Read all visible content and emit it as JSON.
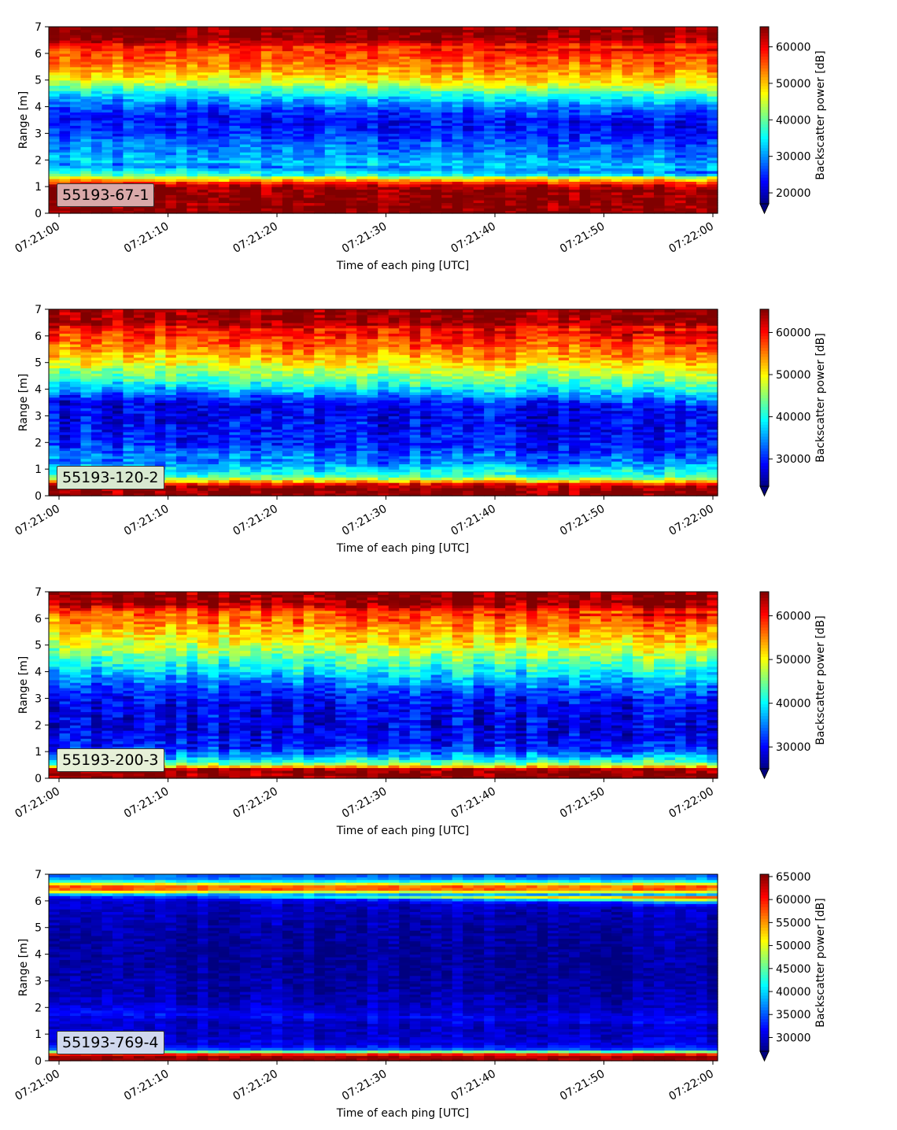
{
  "chart_data": [
    {
      "type": "heatmap",
      "label": "55193-67-1",
      "xlabel": "Time of each ping [UTC]",
      "ylabel": "Range [m]",
      "colorbar_label": "Backscatter power [dB]",
      "colormap": "jet",
      "x_ticks": [
        "07:21:00",
        "07:21:10",
        "07:21:20",
        "07:21:30",
        "07:21:40",
        "07:21:50",
        "07:22:00"
      ],
      "y_ticks": [
        0,
        1,
        2,
        3,
        4,
        5,
        6,
        7
      ],
      "ylim": [
        0,
        7
      ],
      "color_range": [
        17000,
        65500
      ],
      "colorbar_ticks": [
        20000,
        30000,
        40000,
        50000,
        60000
      ],
      "colorbar_extend": "min",
      "label_box_color": "#d9a9a9",
      "profile": [
        [
          0.0,
          65000
        ],
        [
          0.2,
          65000
        ],
        [
          0.9,
          65000
        ],
        [
          1.05,
          62000
        ],
        [
          1.2,
          55000
        ],
        [
          1.35,
          45000
        ],
        [
          1.55,
          36000
        ],
        [
          1.7,
          34000
        ],
        [
          1.85,
          28000
        ],
        [
          2.0,
          33000
        ],
        [
          2.3,
          30000
        ],
        [
          2.7,
          28000
        ],
        [
          3.1,
          25000
        ],
        [
          3.6,
          23000
        ],
        [
          4.0,
          26000
        ],
        [
          4.5,
          33000
        ],
        [
          4.8,
          40000
        ],
        [
          5.1,
          47000
        ],
        [
          5.5,
          52000
        ],
        [
          5.9,
          55000
        ],
        [
          6.3,
          58000
        ],
        [
          6.5,
          64000
        ],
        [
          6.8,
          65000
        ],
        [
          7.0,
          65000
        ]
      ],
      "noise": 6000
    },
    {
      "type": "heatmap",
      "label": "55193-120-2",
      "xlabel": "Time of each ping [UTC]",
      "ylabel": "Range [m]",
      "colorbar_label": "Backscatter power [dB]",
      "colormap": "jet",
      "x_ticks": [
        "07:21:00",
        "07:21:10",
        "07:21:20",
        "07:21:30",
        "07:21:40",
        "07:21:50",
        "07:22:00"
      ],
      "y_ticks": [
        0,
        1,
        2,
        3,
        4,
        5,
        6,
        7
      ],
      "ylim": [
        0,
        7
      ],
      "color_range": [
        23500,
        65500
      ],
      "colorbar_ticks": [
        30000,
        40000,
        50000,
        60000
      ],
      "colorbar_extend": "min",
      "label_box_color": "#d8e8d0",
      "profile": [
        [
          0.0,
          65000
        ],
        [
          0.15,
          65000
        ],
        [
          0.3,
          65000
        ],
        [
          0.45,
          60000
        ],
        [
          0.6,
          48000
        ],
        [
          0.8,
          40000
        ],
        [
          1.0,
          38000
        ],
        [
          1.3,
          33000
        ],
        [
          1.6,
          34000
        ],
        [
          2.0,
          30000
        ],
        [
          2.5,
          29000
        ],
        [
          3.0,
          28000
        ],
        [
          3.5,
          28000
        ],
        [
          3.9,
          33000
        ],
        [
          4.3,
          40000
        ],
        [
          4.7,
          45000
        ],
        [
          5.1,
          50000
        ],
        [
          5.5,
          54000
        ],
        [
          5.9,
          57000
        ],
        [
          6.3,
          60000
        ],
        [
          6.5,
          64000
        ],
        [
          7.0,
          65000
        ]
      ],
      "noise": 6000
    },
    {
      "type": "heatmap",
      "label": "55193-200-3",
      "xlabel": "Time of each ping [UTC]",
      "ylabel": "Range [m]",
      "colorbar_label": "Backscatter power [dB]",
      "colormap": "jet",
      "x_ticks": [
        "07:21:00",
        "07:21:10",
        "07:21:20",
        "07:21:30",
        "07:21:40",
        "07:21:50",
        "07:22:00"
      ],
      "y_ticks": [
        0,
        1,
        2,
        3,
        4,
        5,
        6,
        7
      ],
      "ylim": [
        0,
        7
      ],
      "color_range": [
        25000,
        65500
      ],
      "colorbar_ticks": [
        30000,
        40000,
        50000,
        60000
      ],
      "colorbar_extend": "min",
      "label_box_color": "#e6f0d8",
      "profile": [
        [
          0.0,
          65000
        ],
        [
          0.2,
          65000
        ],
        [
          0.35,
          64000
        ],
        [
          0.5,
          48000
        ],
        [
          0.7,
          40000
        ],
        [
          0.9,
          36000
        ],
        [
          1.2,
          31000
        ],
        [
          1.6,
          30000
        ],
        [
          2.0,
          29000
        ],
        [
          2.5,
          29500
        ],
        [
          3.0,
          30000
        ],
        [
          3.5,
          33000
        ],
        [
          3.9,
          37000
        ],
        [
          4.3,
          41000
        ],
        [
          4.7,
          45000
        ],
        [
          5.1,
          49000
        ],
        [
          5.5,
          52000
        ],
        [
          5.9,
          55000
        ],
        [
          6.3,
          58000
        ],
        [
          6.5,
          64000
        ],
        [
          7.0,
          65000
        ]
      ],
      "noise": 6000
    },
    {
      "type": "heatmap",
      "label": "55193-769-4",
      "xlabel": "Time of each ping [UTC]",
      "ylabel": "Range [m]",
      "colorbar_label": "Backscatter power [dB]",
      "colormap": "jet",
      "x_ticks": [
        "07:21:00",
        "07:21:10",
        "07:21:20",
        "07:21:30",
        "07:21:40",
        "07:21:50",
        "07:22:00"
      ],
      "y_ticks": [
        0,
        1,
        2,
        3,
        4,
        5,
        6,
        7
      ],
      "ylim": [
        0,
        7
      ],
      "color_range": [
        27000,
        65500
      ],
      "colorbar_ticks": [
        30000,
        35000,
        40000,
        45000,
        50000,
        55000,
        60000,
        65000
      ],
      "colorbar_extend": "min",
      "label_box_color": "#d0d8ee",
      "profile": [
        [
          0.0,
          65000
        ],
        [
          0.2,
          64000
        ],
        [
          0.3,
          55000
        ],
        [
          0.4,
          36000
        ],
        [
          0.6,
          31000
        ],
        [
          1.0,
          30000
        ],
        [
          1.5,
          29500
        ],
        [
          1.8,
          32000
        ],
        [
          2.2,
          29500
        ],
        [
          3.0,
          28500
        ],
        [
          4.0,
          28000
        ],
        [
          5.0,
          28500
        ],
        [
          6.0,
          29500
        ],
        [
          6.2,
          33000
        ],
        [
          6.35,
          50000
        ],
        [
          6.5,
          60000
        ],
        [
          6.65,
          50000
        ],
        [
          6.8,
          38000
        ],
        [
          7.0,
          35000
        ]
      ],
      "noise": 3000
    }
  ]
}
